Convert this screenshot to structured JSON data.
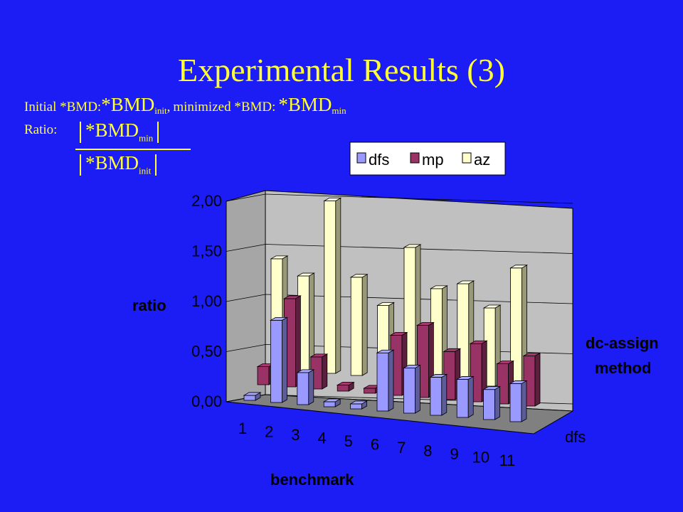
{
  "slide": {
    "title": "Experimental Results (3)",
    "def_initial_label": "Initial *BMD:",
    "def_initial_expr": "*BMD",
    "def_initial_sub": "init",
    "def_sep": ",",
    "def_min_label": "minimized *BMD:",
    "def_min_expr": "*BMD",
    "def_min_sub": "min",
    "ratio_label": "Ratio:",
    "frac_num": "*BMD",
    "frac_num_sub": "min",
    "frac_den": "*BMD",
    "frac_den_sub": "init"
  },
  "chart_data": {
    "type": "bar",
    "style": "3d-clustered-columns",
    "categories": [
      "1",
      "2",
      "3",
      "4",
      "5",
      "6",
      "7",
      "8",
      "9",
      "10",
      "11"
    ],
    "series": [
      {
        "name": "dfs",
        "color": "#9999ff",
        "values": [
          0.05,
          0.82,
          0.32,
          0.05,
          0.05,
          0.58,
          0.45,
          0.38,
          0.38,
          0.3,
          0.38
        ]
      },
      {
        "name": "mp",
        "color": "#993366",
        "values": [
          0.18,
          0.88,
          0.32,
          0.06,
          0.05,
          0.6,
          0.72,
          0.48,
          0.58,
          0.4,
          0.5
        ]
      },
      {
        "name": "az",
        "color": "#ffffcc",
        "values": [
          1.1,
          0.95,
          1.72,
          0.98,
          0.72,
          1.32,
          0.93,
          1.0,
          0.78,
          1.2,
          0.0
        ]
      }
    ],
    "yticks": [
      "0,00",
      "0,50",
      "1,00",
      "1,50",
      "2,00"
    ],
    "ylim": [
      0,
      2
    ],
    "ylabel": "ratio",
    "xlabel": "benchmark",
    "depth_label_1": "dc-assign",
    "depth_label_2": "method",
    "depth_tick": "dfs",
    "legend_position": "top-right",
    "colors": {
      "background": "#1c1cf5",
      "wall": "#c0c0c0",
      "floor": "#808080",
      "text": "#000000",
      "title": "#ffff33"
    }
  }
}
